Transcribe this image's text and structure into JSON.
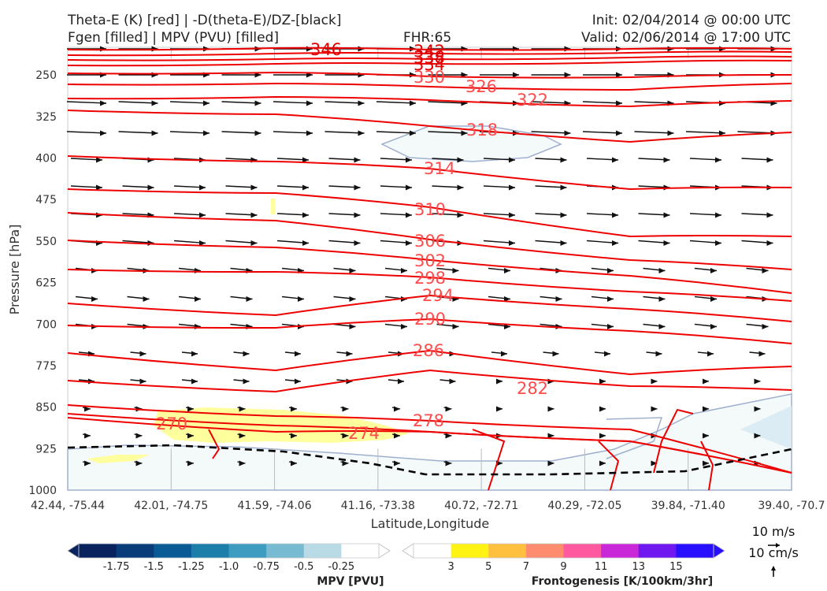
{
  "header": {
    "title_left_1": "Theta-E (K) [red] | -D(theta-E)/DZ-[black]",
    "title_left_2": "Fgen [filled] | MPV (PVU) [filled]",
    "fhr": "FHR:65",
    "init": "Init: 02/04/2014 @ 00:00 UTC",
    "valid": "Valid: 02/06/2014 @ 17:00 UTC"
  },
  "chart_data": {
    "type": "cross-section",
    "xlabel": "Latitude,Longitude",
    "ylabel": "Pressure [hPa]",
    "ylim": [
      1000,
      200
    ],
    "x_ticks": [
      "42.44, -75.44",
      "42.01, -74.75",
      "41.59, -74.06",
      "41.16, -73.38",
      "40.72, -72.71",
      "40.29, -72.05",
      "39.84, -71.40",
      "39.40, -70.7"
    ],
    "y_ticks": [
      250,
      325,
      400,
      475,
      550,
      625,
      700,
      775,
      850,
      925,
      1000
    ],
    "theta_e_contours": {
      "color": "#ee0000",
      "levels": [
        346,
        342,
        338,
        334,
        330,
        326,
        322,
        318,
        314,
        310,
        306,
        302,
        298,
        294,
        290,
        286,
        282,
        278,
        274,
        270
      ],
      "labels": [
        "346",
        "342",
        "338",
        "334",
        "330",
        "326",
        "322",
        "318",
        "314",
        "310",
        "306",
        "302",
        "298",
        "294",
        "290",
        "286",
        "282",
        "278",
        "274",
        "270"
      ]
    },
    "mpv_colorbar": {
      "title": "MPV [PVU]",
      "ticks": [
        "-1.75",
        "-1.5",
        "-1.25",
        "-1.0",
        "-0.75",
        "-0.5",
        "-0.25"
      ],
      "colors": [
        "#08235e",
        "#083d7a",
        "#0a5a96",
        "#1c7faa",
        "#3e9cc0",
        "#76bbd2",
        "#b8dbe6",
        "#ffffff"
      ]
    },
    "fgen_colorbar": {
      "title": "Frontogenesis [K/100km/3hr]",
      "ticks": [
        "3",
        "5",
        "7",
        "9",
        "11",
        "13",
        "15"
      ],
      "colors": [
        "#ffffff",
        "#fff314",
        "#ffc040",
        "#ff8c6e",
        "#ff5aa0",
        "#c828d8",
        "#7018f0",
        "#2810ff"
      ]
    },
    "wind_key": {
      "horizontal": "10 m/s",
      "vertical": "10 cm/s"
    }
  }
}
